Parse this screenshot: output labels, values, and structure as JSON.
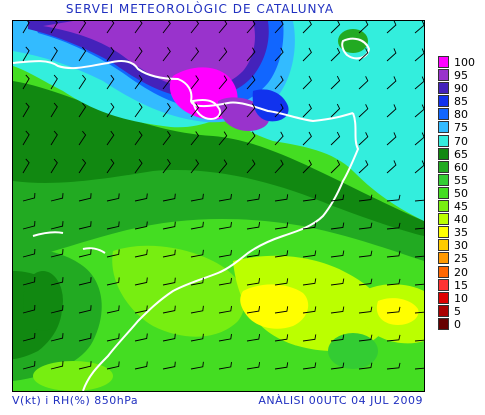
{
  "header": {
    "title": "SERVEI METEOROLÒGIC DE CATALUNYA"
  },
  "footer": {
    "variables": "V(kt) i RH(%) 850hPa",
    "analysis": "ANÀLISI 00UTC 04 JUL 2009"
  },
  "legend": {
    "items": [
      {
        "label": "100",
        "color": "#ff00ff"
      },
      {
        "label": "95",
        "color": "#9933cc"
      },
      {
        "label": "90",
        "color": "#4422bb"
      },
      {
        "label": "85",
        "color": "#1133ee"
      },
      {
        "label": "80",
        "color": "#1166ff"
      },
      {
        "label": "75",
        "color": "#33bbff"
      },
      {
        "label": "70",
        "color": "#33eedd"
      },
      {
        "label": "65",
        "color": "#118811"
      },
      {
        "label": "60",
        "color": "#22aa22"
      },
      {
        "label": "55",
        "color": "#33cc33"
      },
      {
        "label": "50",
        "color": "#44dd22"
      },
      {
        "label": "45",
        "color": "#77ee11"
      },
      {
        "label": "40",
        "color": "#bbff00"
      },
      {
        "label": "35",
        "color": "#ffff00"
      },
      {
        "label": "30",
        "color": "#ffcc00"
      },
      {
        "label": "25",
        "color": "#ff9900"
      },
      {
        "label": "20",
        "color": "#ff6600"
      },
      {
        "label": "15",
        "color": "#ff3333"
      },
      {
        "label": "10",
        "color": "#dd0000"
      },
      {
        "label": "5",
        "color": "#aa0000"
      },
      {
        "label": "0",
        "color": "#660000"
      }
    ]
  }
}
